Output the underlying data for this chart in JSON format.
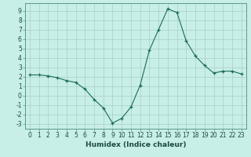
{
  "x": [
    0,
    1,
    2,
    3,
    4,
    5,
    6,
    7,
    8,
    9,
    10,
    11,
    12,
    13,
    14,
    15,
    16,
    17,
    18,
    19,
    20,
    21,
    22,
    23
  ],
  "y": [
    2.2,
    2.2,
    2.1,
    1.9,
    1.6,
    1.4,
    0.7,
    -0.4,
    -1.3,
    -2.9,
    -2.4,
    -1.2,
    1.1,
    4.8,
    7.0,
    9.2,
    8.8,
    5.8,
    4.2,
    3.2,
    2.4,
    2.6,
    2.6,
    2.3
  ],
  "xlabel": "Humidex (Indice chaleur)",
  "line_color": "#1a6b5a",
  "bg_color": "#c8eee8",
  "grid_color": "#a8ceca",
  "ylim": [
    -3.5,
    9.8
  ],
  "xlim": [
    -0.5,
    23.5
  ],
  "yticks": [
    -3,
    -2,
    -1,
    0,
    1,
    2,
    3,
    4,
    5,
    6,
    7,
    8,
    9
  ],
  "xticks": [
    0,
    1,
    2,
    3,
    4,
    5,
    6,
    7,
    8,
    9,
    10,
    11,
    12,
    13,
    14,
    15,
    16,
    17,
    18,
    19,
    20,
    21,
    22,
    23
  ],
  "tick_fontsize": 5.5,
  "xlabel_fontsize": 6.5
}
